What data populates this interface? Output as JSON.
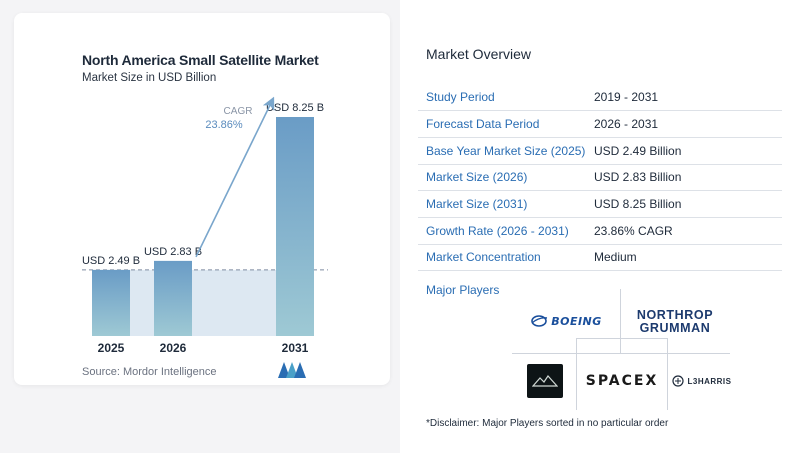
{
  "chart_data": {
    "type": "bar",
    "title": "North America Small Satellite Market",
    "subtitle": "Market Size in USD Billion",
    "categories": [
      "2025",
      "2026",
      "2031"
    ],
    "values": [
      2.49,
      2.83,
      8.25
    ],
    "data_labels": [
      "USD 2.49 B",
      "USD 2.83 B",
      "USD 8.25 B"
    ],
    "ylim": [
      0,
      8.25
    ],
    "baseline_value": 2.49,
    "cagr_label": "CAGR",
    "cagr_value": "23.86%",
    "grid": false,
    "source": "Source: Mordor Intelligence",
    "colors": {
      "bar_top": "#6a9cc6",
      "bar_bottom": "#9ec9d4",
      "arrow": "#7aa6cc",
      "band": "#dde8f2"
    }
  },
  "overview": {
    "title": "Market Overview",
    "rows": [
      {
        "key": "Study Period",
        "value": "2019 - 2031"
      },
      {
        "key": "Forecast Data Period",
        "value": "2026 - 2031"
      },
      {
        "key": "Base Year Market Size (2025)",
        "value": "USD 2.49 Billion"
      },
      {
        "key": "Market Size (2026)",
        "value": "USD 2.83 Billion"
      },
      {
        "key": "Market Size (2031)",
        "value": "USD 8.25 Billion"
      },
      {
        "key": "Growth Rate (2026 - 2031)",
        "value": "23.86% CAGR"
      },
      {
        "key": "Market Concentration",
        "value": "Medium"
      }
    ]
  },
  "players": {
    "label": "Major Players",
    "boeing": "BOEING",
    "northrop_line1": "NORTHROP",
    "northrop_line2": "GRUMMAN",
    "spacex": "SPACEX",
    "l3harris": "L3HARRIS",
    "fifth_logo_icon": "mountain-logo-icon"
  },
  "disclaimer": "*Disclaimer: Major Players sorted in no particular order"
}
